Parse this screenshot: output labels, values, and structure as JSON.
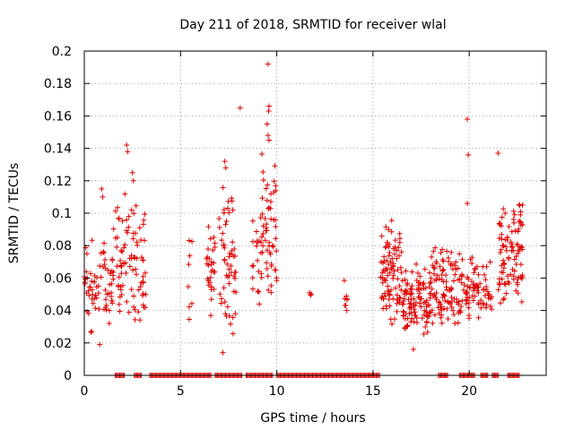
{
  "chart_data": {
    "type": "scatter",
    "title": "Day 211 of 2018, SRMTID for receiver wlal",
    "xlabel": "GPS time / hours",
    "ylabel": "SRMTID / TECUs",
    "xlim": [
      0,
      24
    ],
    "ylim": [
      0,
      0.2
    ],
    "xticks": [
      0,
      5,
      10,
      15,
      20
    ],
    "xtick_labels": [
      "0",
      "5",
      "10",
      "15",
      "20"
    ],
    "yticks": [
      0,
      0.02,
      0.04,
      0.06,
      0.08,
      0.1,
      0.12,
      0.14,
      0.16,
      0.18,
      0.2
    ],
    "ytick_labels": [
      "0",
      "0.02",
      "0.04",
      "0.06",
      "0.08",
      "0.1",
      "0.12",
      "0.14",
      "0.16",
      "0.18",
      "0.2"
    ],
    "grid": true,
    "marker": "+",
    "color": "#e00000",
    "zero_band_ranges": [
      [
        1.6,
        2.1
      ],
      [
        2.6,
        3.0
      ],
      [
        3.4,
        6.6
      ],
      [
        6.8,
        8.2
      ],
      [
        8.4,
        9.8
      ],
      [
        10.0,
        15.4
      ],
      [
        18.4,
        18.9
      ],
      [
        19.5,
        20.3
      ],
      [
        20.6,
        21.0
      ],
      [
        21.2,
        21.5
      ],
      [
        22.0,
        22.6
      ]
    ],
    "clusters": [
      {
        "x": [
          0.0,
          1.5
        ],
        "y": [
          0.02,
          0.09
        ],
        "n": 70
      },
      {
        "x": [
          1.5,
          2.6
        ],
        "y": [
          0.03,
          0.12
        ],
        "n": 55
      },
      {
        "x": [
          2.6,
          3.2
        ],
        "y": [
          0.03,
          0.11
        ],
        "n": 35
      },
      {
        "x": [
          5.4,
          5.6
        ],
        "y": [
          0.03,
          0.09
        ],
        "n": 8
      },
      {
        "x": [
          6.3,
          6.8
        ],
        "y": [
          0.035,
          0.1
        ],
        "n": 30
      },
      {
        "x": [
          7.0,
          7.9
        ],
        "y": [
          0.02,
          0.12
        ],
        "n": 55
      },
      {
        "x": [
          8.7,
          9.2
        ],
        "y": [
          0.04,
          0.1
        ],
        "n": 20
      },
      {
        "x": [
          9.2,
          10.0
        ],
        "y": [
          0.04,
          0.14
        ],
        "n": 55
      },
      {
        "x": [
          11.7,
          11.9
        ],
        "y": [
          0.04,
          0.06
        ],
        "n": 3
      },
      {
        "x": [
          13.5,
          13.7
        ],
        "y": [
          0.035,
          0.06
        ],
        "n": 8
      },
      {
        "x": [
          15.4,
          16.5
        ],
        "y": [
          0.03,
          0.1
        ],
        "n": 90
      },
      {
        "x": [
          16.5,
          18.0
        ],
        "y": [
          0.02,
          0.07
        ],
        "n": 110
      },
      {
        "x": [
          18.0,
          20.5
        ],
        "y": [
          0.03,
          0.08
        ],
        "n": 150
      },
      {
        "x": [
          20.5,
          21.2
        ],
        "y": [
          0.03,
          0.075
        ],
        "n": 25
      },
      {
        "x": [
          21.5,
          22.8
        ],
        "y": [
          0.04,
          0.11
        ],
        "n": 100
      }
    ],
    "points": [
      {
        "x": 2.2,
        "y": 0.142
      },
      {
        "x": 2.25,
        "y": 0.138
      },
      {
        "x": 8.1,
        "y": 0.165
      },
      {
        "x": 9.55,
        "y": 0.192
      },
      {
        "x": 9.6,
        "y": 0.166
      },
      {
        "x": 9.58,
        "y": 0.163
      },
      {
        "x": 9.5,
        "y": 0.155
      },
      {
        "x": 9.55,
        "y": 0.148
      },
      {
        "x": 9.6,
        "y": 0.145
      },
      {
        "x": 7.3,
        "y": 0.132
      },
      {
        "x": 7.35,
        "y": 0.128
      },
      {
        "x": 19.9,
        "y": 0.158
      },
      {
        "x": 19.95,
        "y": 0.136
      },
      {
        "x": 19.9,
        "y": 0.106
      },
      {
        "x": 21.5,
        "y": 0.137
      },
      {
        "x": 2.5,
        "y": 0.125
      },
      {
        "x": 2.55,
        "y": 0.12
      },
      {
        "x": 0.9,
        "y": 0.115
      },
      {
        "x": 0.95,
        "y": 0.11
      },
      {
        "x": 0.8,
        "y": 0.019
      },
      {
        "x": 17.1,
        "y": 0.016
      },
      {
        "x": 7.2,
        "y": 0.014
      }
    ]
  }
}
